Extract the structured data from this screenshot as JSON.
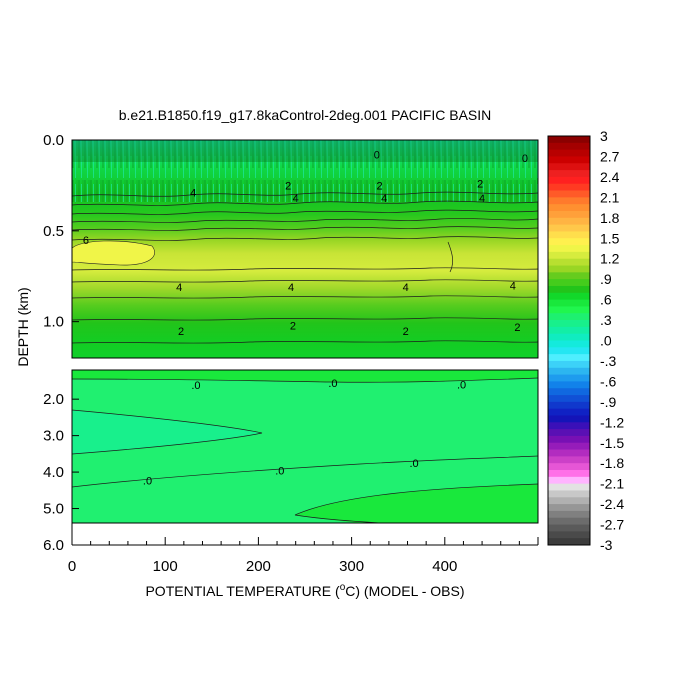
{
  "chart_data": {
    "type": "contour",
    "title": "b.e21.B1850.f19_g17.8kaControl-2deg.001 PACIFIC BASIN",
    "xlabel_prefix": "POTENTIAL TEMPERATURE (",
    "xlabel_unit_sup": "o",
    "xlabel_suffix": "C) (MODEL - OBS)",
    "ylabel": "DEPTH (km)",
    "xlim": [
      0,
      500
    ],
    "x_ticks": [
      0,
      100,
      200,
      300,
      400
    ],
    "x_tick_labels": [
      "0",
      "100",
      "200",
      "300",
      "400"
    ],
    "upper_panel": {
      "ylim": [
        0.0,
        1.2
      ],
      "y_ticks": [
        0.0,
        0.5,
        1.0
      ],
      "y_tick_labels": [
        "0.0",
        "0.5",
        "1.0"
      ]
    },
    "lower_panel": {
      "ylim": [
        1.2,
        6.0
      ],
      "y_ticks": [
        2.0,
        3.0,
        4.0,
        5.0,
        6.0
      ],
      "y_tick_labels": [
        "2.0",
        "3.0",
        "4.0",
        "5.0",
        "6.0"
      ]
    },
    "contour_labels": {
      "upper": [
        {
          "text": "4",
          "x": 130,
          "depth": 0.29
        },
        {
          "text": "2",
          "x": 232,
          "depth": 0.25
        },
        {
          "text": "4",
          "x": 240,
          "depth": 0.32
        },
        {
          "text": "2",
          "x": 330,
          "depth": 0.25
        },
        {
          "text": "4",
          "x": 335,
          "depth": 0.32
        },
        {
          "text": "2",
          "x": 438,
          "depth": 0.24
        },
        {
          "text": "4",
          "x": 440,
          "depth": 0.32
        },
        {
          "text": "6",
          "x": 15,
          "depth": 0.55
        },
        {
          "text": "4",
          "x": 115,
          "depth": 0.81
        },
        {
          "text": "4",
          "x": 235,
          "depth": 0.81
        },
        {
          "text": "4",
          "x": 358,
          "depth": 0.81
        },
        {
          "text": "4",
          "x": 473,
          "depth": 0.8
        },
        {
          "text": "2",
          "x": 117,
          "depth": 1.05
        },
        {
          "text": "2",
          "x": 237,
          "depth": 1.02
        },
        {
          "text": "2",
          "x": 358,
          "depth": 1.05
        },
        {
          "text": "2",
          "x": 478,
          "depth": 1.03
        },
        {
          "text": "0",
          "x": 327,
          "depth": 0.08
        },
        {
          "text": "0",
          "x": 486,
          "depth": 0.1
        }
      ],
      "lower": [
        {
          "text": ".0",
          "x": 133,
          "depth": 1.61
        },
        {
          "text": ".0",
          "x": 280,
          "depth": 1.55
        },
        {
          "text": ".0",
          "x": 418,
          "depth": 1.6
        },
        {
          "text": ".0",
          "x": 223,
          "depth": 3.95
        },
        {
          "text": ".0",
          "x": 367,
          "depth": 3.75
        },
        {
          "text": ".0",
          "x": 81,
          "depth": 4.23
        }
      ]
    },
    "colorbar": {
      "min": -3.0,
      "max": 3.0,
      "step": 0.15,
      "labels": [
        "3",
        "2.7",
        "2.4",
        "2.1",
        "1.8",
        "1.5",
        "1.2",
        ".9",
        ".6",
        ".3",
        ".0",
        "-.3",
        "-.6",
        "-.9",
        "-1.2",
        "-1.5",
        "-1.8",
        "-2.1",
        "-2.4",
        "-2.7",
        "-3"
      ],
      "colors_top_to_bottom": [
        "#8b0000",
        "#a40000",
        "#b80000",
        "#cc0000",
        "#dd1010",
        "#ee2020",
        "#ff2020",
        "#ff3a22",
        "#ff5a28",
        "#ff7a2c",
        "#ff9030",
        "#ffa03a",
        "#ffb443",
        "#ffc84a",
        "#ffde4c",
        "#fff04e",
        "#f0f548",
        "#d6ec3e",
        "#b8e030",
        "#99d624",
        "#66cc1e",
        "#44cc1c",
        "#22c41a",
        "#12d82a",
        "#19e83c",
        "#20f64e",
        "#1ef070",
        "#18f08c",
        "#12eea6",
        "#10ecc0",
        "#14eadc",
        "#24e6f2",
        "#4eeefe",
        "#3cd2f8",
        "#2cb6f0",
        "#1e9cee",
        "#1282ea",
        "#1068e0",
        "#1050d6",
        "#1038cc",
        "#1022c4",
        "#1414b8",
        "#3a10b8",
        "#5a10b4",
        "#7810b4",
        "#961cba",
        "#b22cc0",
        "#cc40c8",
        "#e656d6",
        "#ff70e8",
        "#ffb4ff",
        "#e2e2e2",
        "#c8c8c8",
        "#b0b0b0",
        "#969696",
        "#808080",
        "#6c6c6c",
        "#5a5a5a",
        "#4a4a4a",
        "#3c3c3c"
      ]
    }
  }
}
